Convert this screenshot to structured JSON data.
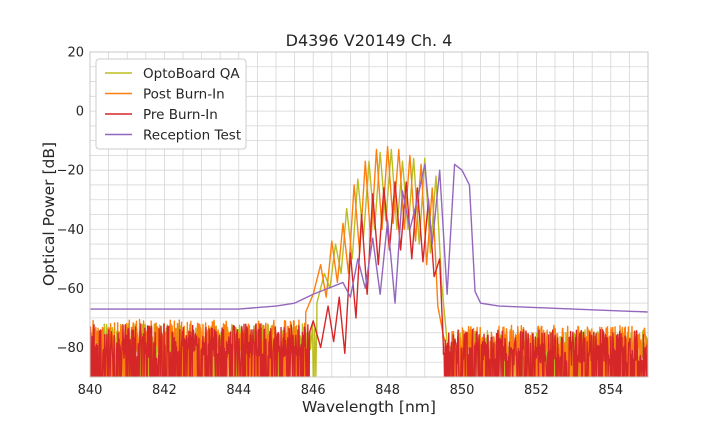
{
  "chart_data": {
    "type": "line",
    "title": "D4396 V20149 Ch. 4",
    "xlabel": "Wavelength [nm]",
    "ylabel": "Optical Power [dB]",
    "xlim": [
      840,
      855
    ],
    "ylim": [
      -90,
      20
    ],
    "xticks": [
      840,
      842,
      844,
      846,
      848,
      850,
      852,
      854
    ],
    "yticks": [
      20,
      0,
      -20,
      -40,
      -60,
      -80
    ],
    "ytick_labels": [
      "20",
      "0",
      "−20",
      "−40",
      "−60",
      "−80"
    ],
    "grid": true,
    "legend_position": "top-left",
    "series": [
      {
        "name": "OptoBoard QA",
        "color": "#bcbd22",
        "noise": {
          "from": 840,
          "to": 846.1,
          "floor": -90,
          "mean": -77,
          "spread": 10
        },
        "x": [
          846.1,
          846.3,
          846.45,
          846.6,
          846.75,
          846.9,
          847.05,
          847.2,
          847.35,
          847.5,
          847.65,
          847.8,
          847.95,
          848.1,
          848.25,
          848.4,
          848.55,
          848.7,
          848.85,
          849.0,
          849.15,
          849.3,
          849.45,
          849.6,
          849.75,
          849.9
        ],
        "y": [
          -65,
          -55,
          -60,
          -45,
          -55,
          -33,
          -50,
          -23,
          -43,
          -17,
          -40,
          -14,
          -37,
          -13,
          -40,
          -17,
          -40,
          -16,
          -45,
          -16,
          -48,
          -22,
          -58,
          -78,
          -82,
          -86
        ],
        "noise_after": {
          "from": 849.9,
          "to": 855,
          "floor": -90,
          "mean": -79,
          "spread": 10
        }
      },
      {
        "name": "Post Burn-In",
        "color": "#ff7f0e",
        "noise": {
          "from": 840,
          "to": 845.8,
          "floor": -90,
          "mean": -76,
          "spread": 11
        },
        "x": [
          845.8,
          846.0,
          846.2,
          846.35,
          846.5,
          846.65,
          846.8,
          846.95,
          847.1,
          847.25,
          847.4,
          847.55,
          847.7,
          847.85,
          848.0,
          848.15,
          848.3,
          848.45,
          848.6,
          848.75,
          848.9,
          849.05,
          849.2,
          849.35,
          849.5,
          849.65
        ],
        "y": [
          -68,
          -62,
          -52,
          -63,
          -44,
          -58,
          -38,
          -55,
          -25,
          -48,
          -17,
          -44,
          -13,
          -40,
          -12,
          -38,
          -13,
          -40,
          -15,
          -44,
          -18,
          -52,
          -26,
          -66,
          -76,
          -82
        ],
        "noise_after": {
          "from": 849.65,
          "to": 855,
          "floor": -90,
          "mean": -78,
          "spread": 11
        }
      },
      {
        "name": "Pre Burn-In",
        "color": "#d62728",
        "noise": {
          "from": 840,
          "to": 845.9,
          "floor": -90,
          "mean": -78,
          "spread": 12
        },
        "x": [
          845.9,
          846.0,
          846.2,
          846.4,
          846.55,
          846.7,
          846.85,
          847.0,
          847.15,
          847.3,
          847.45,
          847.6,
          847.75,
          847.9,
          848.05,
          848.2,
          848.35,
          848.5,
          848.65,
          848.8,
          848.95,
          849.1,
          849.25,
          849.4,
          849.5
        ],
        "y": [
          -75,
          -71,
          -80,
          -66,
          -78,
          -63,
          -82,
          -48,
          -70,
          -35,
          -62,
          -28,
          -52,
          -26,
          -47,
          -24,
          -47,
          -24,
          -50,
          -26,
          -51,
          -30,
          -56,
          -50,
          -80
        ],
        "noise_after": {
          "from": 849.5,
          "to": 855,
          "floor": -90,
          "mean": -80,
          "spread": 12
        }
      },
      {
        "name": "Reception Test",
        "color": "#9467bd",
        "x": [
          840,
          841,
          842,
          843,
          844,
          845,
          845.5,
          846.0,
          846.4,
          846.8,
          847.0,
          847.2,
          847.4,
          847.6,
          847.8,
          848.0,
          848.2,
          848.4,
          848.6,
          848.8,
          849.0,
          849.2,
          849.4,
          849.6,
          849.8,
          850.0,
          850.2,
          850.35,
          850.5,
          851,
          852,
          853,
          854,
          855
        ],
        "y": [
          -67,
          -67,
          -67,
          -67,
          -67,
          -66,
          -65,
          -62,
          -60,
          -58,
          -63,
          -50,
          -60,
          -43,
          -62,
          -37,
          -65,
          -27,
          -40,
          -30,
          -18,
          -45,
          -20,
          -62,
          -18,
          -20,
          -25,
          -61,
          -65,
          -66,
          -66.5,
          -67,
          -67.5,
          -68
        ]
      }
    ]
  }
}
